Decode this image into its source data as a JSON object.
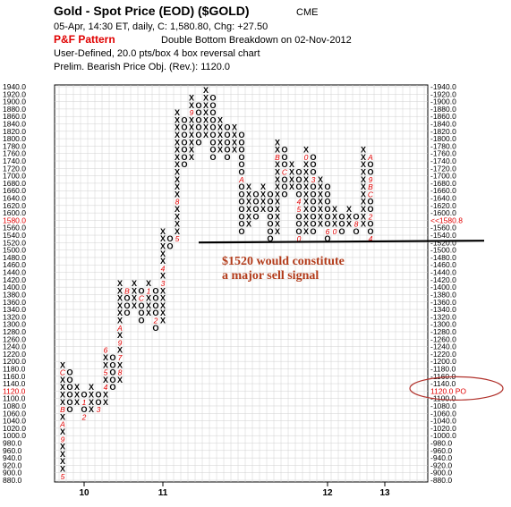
{
  "header": {
    "title": "Gold - Spot Price (EOD) ($GOLD)",
    "exchange": "CME",
    "quote_line": "05-Apr, 14:30 ET, daily, C: 1,580.80, Chg: +27.50",
    "pattern_label": "P&F Pattern",
    "pattern_text": "Double Bottom Breakdown on 02-Nov-2012",
    "box_line": "User-Defined, 20.0 pts/box 4 box reversal chart",
    "objective_line": "Prelim. Bearish Price Obj. (Rev.): 1120.0"
  },
  "annotation": {
    "text_line1": "$1520 would constitute",
    "text_line2": "a major sell signal",
    "level": 1520
  },
  "current_price_label": "1580.0",
  "current_price_marker": "<<1580.8",
  "objective_label": "1120.0",
  "objective_marker": "1120.0 PO",
  "colors": {
    "red": "#e00000",
    "annotation": "#b23b1a",
    "grid": "#d0d0d0",
    "line": "#000000"
  },
  "chart_data": {
    "type": "point-and-figure",
    "title": "Gold - Spot Price (EOD) ($GOLD)",
    "box_size": 20,
    "reversal": 4,
    "ylim": [
      880,
      1940
    ],
    "y_ticks": [
      1940.0,
      1920.0,
      1900.0,
      1880.0,
      1860.0,
      1840.0,
      1820.0,
      1800.0,
      1780.0,
      1760.0,
      1740.0,
      1720.0,
      1700.0,
      1680.0,
      1660.0,
      1640.0,
      1620.0,
      1600.0,
      1580.0,
      1560.0,
      1540.0,
      1520.0,
      1500.0,
      1480.0,
      1460.0,
      1440.0,
      1420.0,
      1400.0,
      1380.0,
      1360.0,
      1340.0,
      1320.0,
      1300.0,
      1280.0,
      1260.0,
      1240.0,
      1220.0,
      1200.0,
      1180.0,
      1160.0,
      1140.0,
      1120.0,
      1100.0,
      1080.0,
      1060.0,
      1040.0,
      1020.0,
      1000.0,
      980.0,
      960.0,
      940.0,
      920.0,
      900.0,
      880.0
    ],
    "x_tick_labels": [
      {
        "label": "10",
        "col": 3
      },
      {
        "label": "11",
        "col": 14
      },
      {
        "label": "12",
        "col": 37
      },
      {
        "label": "13",
        "col": 45
      }
    ],
    "columns": [
      {
        "type": "X",
        "low": 900,
        "high": 1200
      },
      {
        "type": "O",
        "low": 1080,
        "high": 1180
      },
      {
        "type": "X",
        "low": 1100,
        "high": 1140
      },
      {
        "type": "O",
        "low": 1060,
        "high": 1120
      },
      {
        "type": "X",
        "low": 1080,
        "high": 1140
      },
      {
        "type": "O",
        "low": 1080,
        "high": 1120
      },
      {
        "type": "X",
        "low": 1100,
        "high": 1240
      },
      {
        "type": "O",
        "low": 1140,
        "high": 1220
      },
      {
        "type": "X",
        "low": 1160,
        "high": 1420
      },
      {
        "type": "O",
        "low": 1340,
        "high": 1400
      },
      {
        "type": "X",
        "low": 1360,
        "high": 1420
      },
      {
        "type": "O",
        "low": 1320,
        "high": 1400
      },
      {
        "type": "X",
        "low": 1340,
        "high": 1420
      },
      {
        "type": "O",
        "low": 1300,
        "high": 1400
      },
      {
        "type": "X",
        "low": 1320,
        "high": 1560
      },
      {
        "type": "O",
        "low": 1520,
        "high": 1540
      },
      {
        "type": "X",
        "low": 1540,
        "high": 1880
      },
      {
        "type": "O",
        "low": 1740,
        "high": 1860
      },
      {
        "type": "X",
        "low": 1760,
        "high": 1920
      },
      {
        "type": "O",
        "low": 1800,
        "high": 1900
      },
      {
        "type": "X",
        "low": 1820,
        "high": 1940
      },
      {
        "type": "O",
        "low": 1760,
        "high": 1920
      },
      {
        "type": "X",
        "low": 1780,
        "high": 1860
      },
      {
        "type": "O",
        "low": 1760,
        "high": 1840
      },
      {
        "type": "X",
        "low": 1780,
        "high": 1840
      },
      {
        "type": "O",
        "low": 1560,
        "high": 1820
      },
      {
        "type": "X",
        "low": 1580,
        "high": 1680
      },
      {
        "type": "O",
        "low": 1600,
        "high": 1660
      },
      {
        "type": "X",
        "low": 1620,
        "high": 1680
      },
      {
        "type": "O",
        "low": 1540,
        "high": 1660
      },
      {
        "type": "X",
        "low": 1560,
        "high": 1800
      },
      {
        "type": "O",
        "low": 1660,
        "high": 1780
      },
      {
        "type": "X",
        "low": 1680,
        "high": 1740
      },
      {
        "type": "O",
        "low": 1540,
        "high": 1720
      },
      {
        "type": "X",
        "low": 1560,
        "high": 1780
      },
      {
        "type": "O",
        "low": 1560,
        "high": 1760
      },
      {
        "type": "X",
        "low": 1580,
        "high": 1700
      },
      {
        "type": "O",
        "low": 1540,
        "high": 1680
      },
      {
        "type": "X",
        "low": 1560,
        "high": 1620
      },
      {
        "type": "O",
        "low": 1560,
        "high": 1600
      },
      {
        "type": "X",
        "low": 1580,
        "high": 1620
      },
      {
        "type": "O",
        "low": 1560,
        "high": 1600
      },
      {
        "type": "X",
        "low": 1580,
        "high": 1780
      },
      {
        "type": "O",
        "low": 1540,
        "high": 1760
      }
    ],
    "month_markers": [
      {
        "col": 0,
        "price": 900,
        "label": "5"
      },
      {
        "col": 0,
        "price": 1000,
        "label": "9"
      },
      {
        "col": 0,
        "price": 1040,
        "label": "A"
      },
      {
        "col": 0,
        "price": 1080,
        "label": "B"
      },
      {
        "col": 0,
        "price": 1180,
        "label": "C"
      },
      {
        "col": 3,
        "price": 1100,
        "label": "1"
      },
      {
        "col": 3,
        "price": 1060,
        "label": "2"
      },
      {
        "col": 5,
        "price": 1080,
        "label": "3"
      },
      {
        "col": 6,
        "price": 1140,
        "label": "4"
      },
      {
        "col": 6,
        "price": 1180,
        "label": "5"
      },
      {
        "col": 6,
        "price": 1240,
        "label": "6"
      },
      {
        "col": 8,
        "price": 1220,
        "label": "7"
      },
      {
        "col": 8,
        "price": 1180,
        "label": "8"
      },
      {
        "col": 8,
        "price": 1260,
        "label": "9"
      },
      {
        "col": 8,
        "price": 1300,
        "label": "A"
      },
      {
        "col": 9,
        "price": 1400,
        "label": "B"
      },
      {
        "col": 11,
        "price": 1380,
        "label": "C"
      },
      {
        "col": 12,
        "price": 1400,
        "label": "1"
      },
      {
        "col": 13,
        "price": 1320,
        "label": "2"
      },
      {
        "col": 14,
        "price": 1420,
        "label": "3"
      },
      {
        "col": 14,
        "price": 1460,
        "label": "4"
      },
      {
        "col": 16,
        "price": 1540,
        "label": "5"
      },
      {
        "col": 15,
        "price": 1500,
        "label": "6"
      },
      {
        "col": 16,
        "price": 1520,
        "label": "7"
      },
      {
        "col": 16,
        "price": 1640,
        "label": "8"
      },
      {
        "col": 18,
        "price": 1880,
        "label": "9"
      },
      {
        "col": 25,
        "price": 1700,
        "label": "A"
      },
      {
        "col": 30,
        "price": 1760,
        "label": "B"
      },
      {
        "col": 31,
        "price": 1720,
        "label": "C"
      },
      {
        "col": 33,
        "price": 1760,
        "label": "2"
      },
      {
        "col": 34,
        "price": 1760,
        "label": "0"
      },
      {
        "col": 35,
        "price": 1700,
        "label": "3"
      },
      {
        "col": 33,
        "price": 1640,
        "label": "4"
      },
      {
        "col": 33,
        "price": 1620,
        "label": "5"
      },
      {
        "col": 33,
        "price": 1540,
        "label": "0"
      },
      {
        "col": 35,
        "price": 1540,
        "label": "1"
      },
      {
        "col": 36,
        "price": 1540,
        "label": "0"
      },
      {
        "col": 37,
        "price": 1560,
        "label": "6"
      },
      {
        "col": 38,
        "price": 1560,
        "label": "0"
      },
      {
        "col": 41,
        "price": 1580,
        "label": "8"
      },
      {
        "col": 43,
        "price": 1760,
        "label": "A"
      },
      {
        "col": 43,
        "price": 1700,
        "label": "9"
      },
      {
        "col": 43,
        "price": 1680,
        "label": "B"
      },
      {
        "col": 43,
        "price": 1660,
        "label": "C"
      },
      {
        "col": 43,
        "price": 1600,
        "label": "2"
      },
      {
        "col": 43,
        "price": 1540,
        "label": "4"
      }
    ]
  }
}
